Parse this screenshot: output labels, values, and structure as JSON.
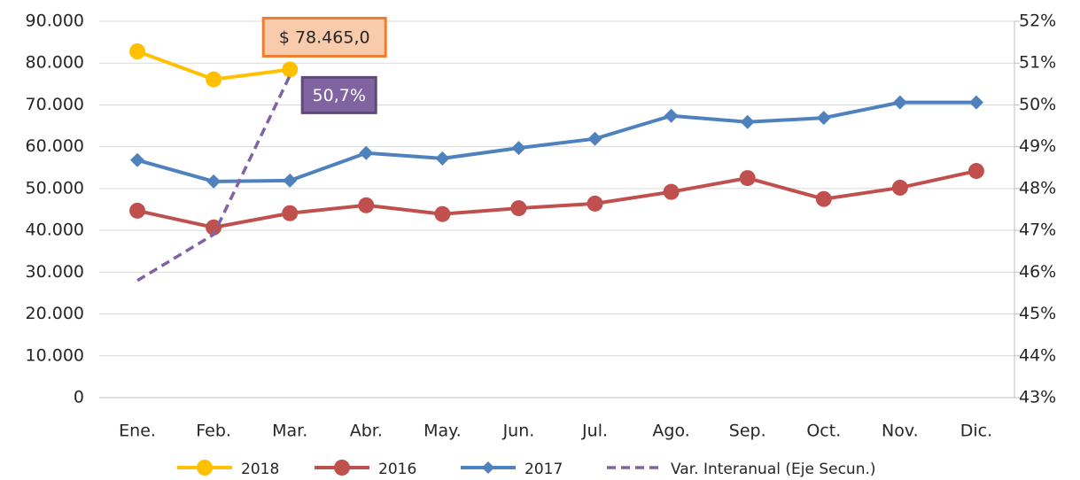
{
  "chart_data": {
    "type": "line",
    "categories": [
      "Ene.",
      "Feb.",
      "Mar.",
      "Abr.",
      "May.",
      "Jun.",
      "Jul.",
      "Ago.",
      "Sep.",
      "Oct.",
      "Nov.",
      "Dic."
    ],
    "series": [
      {
        "name": "2018",
        "color": "#ffc000",
        "marker": "circle",
        "values": [
          82800,
          76100,
          78465,
          null,
          null,
          null,
          null,
          null,
          null,
          null,
          null,
          null
        ],
        "value_labels": [
          null,
          null,
          "$ 78.465,0",
          null,
          null,
          null,
          null,
          null,
          null,
          null,
          null,
          null
        ]
      },
      {
        "name": "2016",
        "color": "#c0504d",
        "marker": "circle",
        "values": [
          44700,
          40700,
          44100,
          46000,
          43900,
          45300,
          46400,
          49200,
          52500,
          47500,
          50200,
          54200
        ]
      },
      {
        "name": "2017",
        "color": "#4f81bd",
        "marker": "diamond",
        "values": [
          56800,
          51700,
          51900,
          58500,
          57200,
          59700,
          61900,
          67400,
          65900,
          66900,
          70600,
          70600
        ]
      },
      {
        "name": "Var. Interanual (Eje Secun.)",
        "color": "#8064a2",
        "dashed": true,
        "axis": "y2",
        "values": [
          45.8,
          46.9,
          50.7,
          null,
          null,
          null,
          null,
          null,
          null,
          null,
          null,
          null
        ],
        "value_labels": [
          null,
          null,
          "50,7%",
          null,
          null,
          null,
          null,
          null,
          null,
          null,
          null,
          null
        ]
      }
    ],
    "ylim": [
      0,
      90000
    ],
    "yticks": [
      0,
      {
        "value": 10000,
        "label": "10.000"
      },
      {
        "value": 20000,
        "label": "20.000"
      },
      {
        "value": 30000,
        "label": "30.000"
      },
      {
        "value": 40000,
        "label": "40.000"
      },
      {
        "value": 50000,
        "label": "50.000"
      },
      {
        "value": 60000,
        "label": "60.000"
      },
      {
        "value": 70000,
        "label": "70.000"
      },
      {
        "value": 80000,
        "label": "80.000"
      },
      {
        "value": 90000,
        "label": "90.000"
      }
    ],
    "y2lim": [
      43,
      52
    ],
    "y2ticks": [
      {
        "value": 43,
        "label": "43%"
      },
      {
        "value": 44,
        "label": "44%"
      },
      {
        "value": 45,
        "label": "45%"
      },
      {
        "value": 46,
        "label": "46%"
      },
      {
        "value": 47,
        "label": "47%"
      },
      {
        "value": 48,
        "label": "48%"
      },
      {
        "value": 49,
        "label": "49%"
      },
      {
        "value": 50,
        "label": "50%"
      },
      {
        "value": 51,
        "label": "51%"
      },
      {
        "value": 52,
        "label": "52%"
      }
    ],
    "grid": true,
    "legend": "bottom"
  }
}
